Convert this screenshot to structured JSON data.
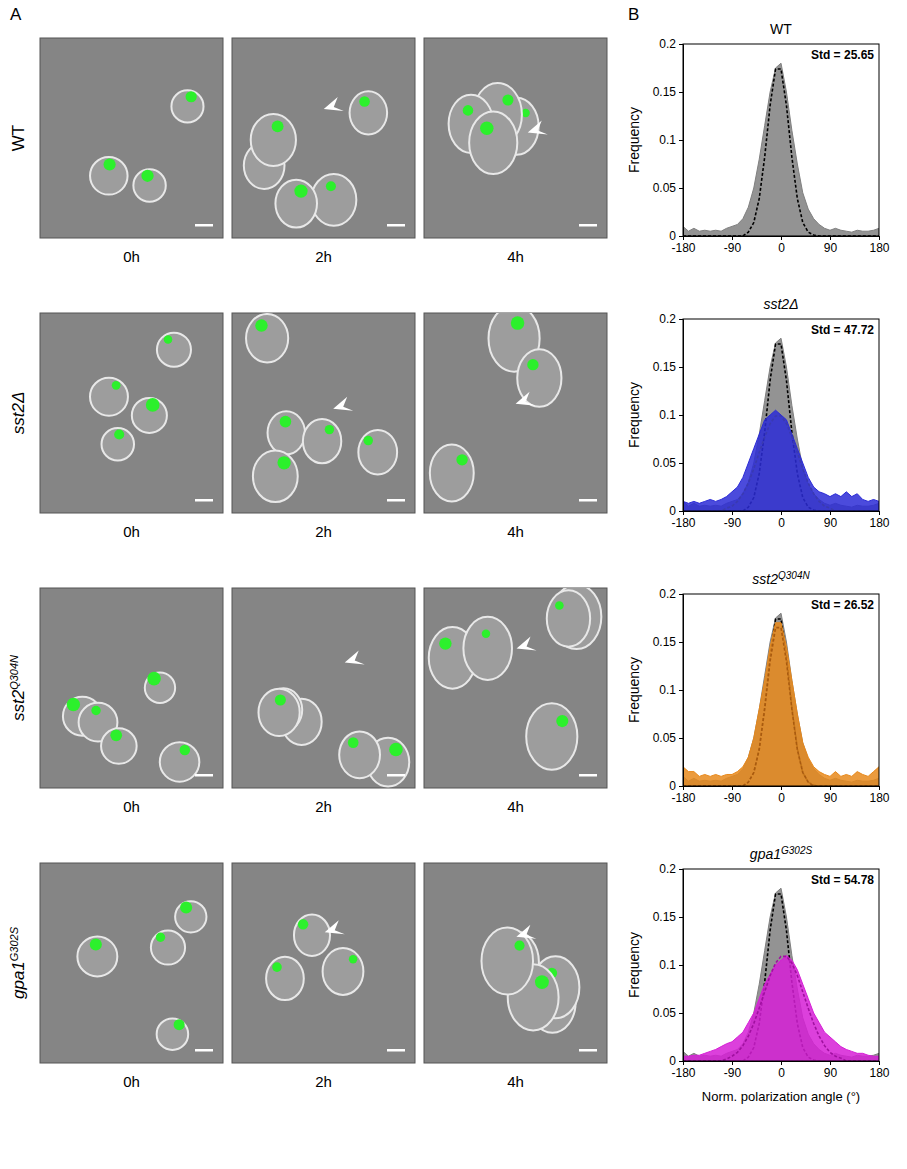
{
  "figure": {
    "panel_a": {
      "label": "A",
      "rows": [
        {
          "label": "WT"
        },
        {
          "label": "sst2Δ"
        },
        {
          "label": "sst2",
          "label_sup": "Q304N"
        },
        {
          "label": "gpa1",
          "label_sup": "G302S"
        }
      ],
      "times": [
        "0h",
        "2h",
        "4h"
      ]
    },
    "panel_b": {
      "label": "B"
    }
  },
  "chart_data": [
    {
      "type": "area",
      "title": "WT",
      "annotation": "Std = 25.65",
      "ylabel": "Frequency",
      "x": [
        -180,
        -170,
        -160,
        -150,
        -140,
        -130,
        -120,
        -110,
        -100,
        -90,
        -80,
        -70,
        -60,
        -50,
        -40,
        -30,
        -20,
        -10,
        0,
        10,
        20,
        30,
        40,
        50,
        60,
        70,
        80,
        90,
        100,
        110,
        120,
        130,
        140,
        150,
        160,
        170,
        180
      ],
      "xlim": [
        -180,
        180
      ],
      "ylim": [
        0,
        0.2
      ],
      "xticks": [
        -180,
        -90,
        0,
        90,
        180
      ],
      "yticks": [
        0,
        0.05,
        0.1,
        0.15,
        0.2
      ],
      "series": [
        {
          "type": "area",
          "color": "#808080",
          "values": [
            0.01,
            0.005,
            0.008,
            0.005,
            0.006,
            0.005,
            0.006,
            0.005,
            0.008,
            0.01,
            0.012,
            0.018,
            0.03,
            0.05,
            0.08,
            0.115,
            0.15,
            0.175,
            0.18,
            0.15,
            0.11,
            0.075,
            0.045,
            0.028,
            0.018,
            0.012,
            0.008,
            0.006,
            0.008,
            0.006,
            0.005,
            0.004,
            0.006,
            0.005,
            0.005,
            0.006,
            0.008
          ]
        },
        {
          "type": "line",
          "line_style": "dashed",
          "color": "#000000",
          "values": [
            0,
            0,
            0,
            0,
            0,
            0,
            0,
            0,
            0,
            0,
            0,
            0,
            0.004,
            0.014,
            0.039,
            0.082,
            0.136,
            0.174,
            0.174,
            0.136,
            0.082,
            0.039,
            0.014,
            0.004,
            0.001,
            0,
            0,
            0,
            0,
            0,
            0,
            0,
            0,
            0,
            0,
            0,
            0
          ]
        }
      ]
    },
    {
      "type": "area",
      "title": "sst2Δ",
      "annotation": "Std = 47.72",
      "ylabel": "Frequency",
      "x": [
        -180,
        -170,
        -160,
        -150,
        -140,
        -130,
        -120,
        -110,
        -100,
        -90,
        -80,
        -70,
        -60,
        -50,
        -40,
        -30,
        -20,
        -10,
        0,
        10,
        20,
        30,
        40,
        50,
        60,
        70,
        80,
        90,
        100,
        110,
        120,
        130,
        140,
        150,
        160,
        170,
        180
      ],
      "xlim": [
        -180,
        180
      ],
      "ylim": [
        0,
        0.2
      ],
      "xticks": [
        -180,
        -90,
        0,
        90,
        180
      ],
      "yticks": [
        0,
        0.05,
        0.1,
        0.15,
        0.2
      ],
      "series": [
        {
          "type": "area",
          "color": "#808080",
          "values": [
            0.01,
            0.005,
            0.008,
            0.005,
            0.006,
            0.005,
            0.006,
            0.005,
            0.008,
            0.01,
            0.012,
            0.018,
            0.03,
            0.05,
            0.08,
            0.115,
            0.15,
            0.175,
            0.18,
            0.15,
            0.11,
            0.075,
            0.045,
            0.028,
            0.018,
            0.012,
            0.008,
            0.006,
            0.008,
            0.006,
            0.005,
            0.004,
            0.006,
            0.005,
            0.005,
            0.006,
            0.008
          ]
        },
        {
          "type": "line",
          "line_style": "dashed",
          "color": "#000000",
          "values": [
            0,
            0,
            0,
            0,
            0,
            0,
            0,
            0,
            0,
            0,
            0,
            0,
            0.004,
            0.014,
            0.039,
            0.082,
            0.136,
            0.174,
            0.174,
            0.136,
            0.082,
            0.039,
            0.014,
            0.004,
            0.001,
            0,
            0,
            0,
            0,
            0,
            0,
            0,
            0,
            0,
            0,
            0,
            0
          ]
        },
        {
          "type": "area",
          "color": "#2b2bd6",
          "values": [
            0.01,
            0.008,
            0.01,
            0.008,
            0.01,
            0.012,
            0.01,
            0.012,
            0.015,
            0.02,
            0.025,
            0.035,
            0.05,
            0.065,
            0.08,
            0.095,
            0.1,
            0.105,
            0.1,
            0.095,
            0.08,
            0.065,
            0.05,
            0.035,
            0.025,
            0.02,
            0.018,
            0.015,
            0.018,
            0.015,
            0.02,
            0.015,
            0.018,
            0.012,
            0.01,
            0.012,
            0.01
          ]
        },
        {
          "type": "line",
          "line_style": "dashed",
          "color": "#3a3ab0",
          "values": [
            0,
            0,
            0,
            0,
            0,
            0,
            0,
            0,
            0.003,
            0.005,
            0.01,
            0.018,
            0.029,
            0.044,
            0.061,
            0.077,
            0.091,
            0.099,
            0.099,
            0.091,
            0.077,
            0.061,
            0.044,
            0.029,
            0.018,
            0.01,
            0.005,
            0.003,
            0,
            0,
            0,
            0,
            0,
            0,
            0,
            0,
            0
          ]
        }
      ]
    },
    {
      "type": "area",
      "title": "sst2",
      "title_sup": "Q304N",
      "annotation": "Std = 26.52",
      "ylabel": "Frequency",
      "x": [
        -180,
        -170,
        -160,
        -150,
        -140,
        -130,
        -120,
        -110,
        -100,
        -90,
        -80,
        -70,
        -60,
        -50,
        -40,
        -30,
        -20,
        -10,
        0,
        10,
        20,
        30,
        40,
        50,
        60,
        70,
        80,
        90,
        100,
        110,
        120,
        130,
        140,
        150,
        160,
        170,
        180
      ],
      "xlim": [
        -180,
        180
      ],
      "ylim": [
        0,
        0.2
      ],
      "xticks": [
        -180,
        -90,
        0,
        90,
        180
      ],
      "yticks": [
        0,
        0.05,
        0.1,
        0.15,
        0.2
      ],
      "series": [
        {
          "type": "area",
          "color": "#808080",
          "values": [
            0.01,
            0.005,
            0.008,
            0.005,
            0.006,
            0.005,
            0.006,
            0.005,
            0.008,
            0.01,
            0.012,
            0.018,
            0.03,
            0.05,
            0.08,
            0.115,
            0.15,
            0.175,
            0.18,
            0.15,
            0.11,
            0.075,
            0.045,
            0.028,
            0.018,
            0.012,
            0.008,
            0.006,
            0.008,
            0.006,
            0.005,
            0.004,
            0.006,
            0.005,
            0.005,
            0.006,
            0.008
          ]
        },
        {
          "type": "line",
          "line_style": "dashed",
          "color": "#000000",
          "values": [
            0,
            0,
            0,
            0,
            0,
            0,
            0,
            0,
            0,
            0,
            0,
            0,
            0.004,
            0.014,
            0.039,
            0.082,
            0.136,
            0.174,
            0.174,
            0.136,
            0.082,
            0.039,
            0.014,
            0.004,
            0.001,
            0,
            0,
            0,
            0,
            0,
            0,
            0,
            0,
            0,
            0,
            0,
            0
          ]
        },
        {
          "type": "area",
          "color": "#e8891c",
          "values": [
            0.02,
            0.015,
            0.015,
            0.01,
            0.012,
            0.01,
            0.012,
            0.01,
            0.012,
            0.012,
            0.015,
            0.02,
            0.03,
            0.05,
            0.08,
            0.11,
            0.145,
            0.17,
            0.17,
            0.145,
            0.11,
            0.075,
            0.045,
            0.03,
            0.02,
            0.015,
            0.012,
            0.01,
            0.015,
            0.01,
            0.012,
            0.01,
            0.015,
            0.012,
            0.01,
            0.015,
            0.02
          ]
        },
        {
          "type": "line",
          "line_style": "dashed",
          "color": "#a85a10",
          "values": [
            0,
            0,
            0,
            0,
            0,
            0,
            0,
            0,
            0,
            0,
            0,
            0,
            0.004,
            0.014,
            0.038,
            0.08,
            0.13,
            0.165,
            0.165,
            0.13,
            0.08,
            0.038,
            0.014,
            0.004,
            0,
            0,
            0,
            0,
            0,
            0,
            0,
            0,
            0,
            0,
            0,
            0,
            0
          ]
        }
      ]
    },
    {
      "type": "area",
      "title": "gpa1",
      "title_sup": "G302S",
      "annotation": "Std = 54.78",
      "ylabel": "Frequency",
      "xlabel": "Norm. polarization angle (°)",
      "x": [
        -180,
        -170,
        -160,
        -150,
        -140,
        -130,
        -120,
        -110,
        -100,
        -90,
        -80,
        -70,
        -60,
        -50,
        -40,
        -30,
        -20,
        -10,
        0,
        10,
        20,
        30,
        40,
        50,
        60,
        70,
        80,
        90,
        100,
        110,
        120,
        130,
        140,
        150,
        160,
        170,
        180
      ],
      "xlim": [
        -180,
        180
      ],
      "ylim": [
        0,
        0.2
      ],
      "xticks": [
        -180,
        -90,
        0,
        90,
        180
      ],
      "yticks": [
        0,
        0.05,
        0.1,
        0.15,
        0.2
      ],
      "series": [
        {
          "type": "area",
          "color": "#808080",
          "values": [
            0.01,
            0.005,
            0.008,
            0.005,
            0.006,
            0.005,
            0.006,
            0.005,
            0.008,
            0.01,
            0.012,
            0.018,
            0.03,
            0.05,
            0.08,
            0.115,
            0.15,
            0.175,
            0.18,
            0.15,
            0.11,
            0.075,
            0.045,
            0.028,
            0.018,
            0.012,
            0.008,
            0.006,
            0.008,
            0.006,
            0.005,
            0.004,
            0.006,
            0.005,
            0.005,
            0.006,
            0.008
          ]
        },
        {
          "type": "line",
          "line_style": "dashed",
          "color": "#000000",
          "values": [
            0,
            0,
            0,
            0,
            0,
            0,
            0,
            0,
            0,
            0,
            0,
            0,
            0.004,
            0.014,
            0.039,
            0.082,
            0.136,
            0.174,
            0.174,
            0.136,
            0.082,
            0.039,
            0.014,
            0.004,
            0.001,
            0,
            0,
            0,
            0,
            0,
            0,
            0,
            0,
            0,
            0,
            0,
            0
          ]
        },
        {
          "type": "area",
          "color": "#d61fd6",
          "values": [
            0.005,
            0.005,
            0.006,
            0.006,
            0.008,
            0.01,
            0.012,
            0.015,
            0.018,
            0.02,
            0.025,
            0.03,
            0.04,
            0.05,
            0.065,
            0.08,
            0.09,
            0.1,
            0.105,
            0.11,
            0.105,
            0.095,
            0.08,
            0.065,
            0.05,
            0.04,
            0.03,
            0.025,
            0.02,
            0.015,
            0.012,
            0.01,
            0.008,
            0.008,
            0.006,
            0.005,
            0.005
          ]
        },
        {
          "type": "line",
          "line_style": "dashed",
          "color": "#a010a0",
          "values": [
            0,
            0,
            0,
            0,
            0,
            0,
            0,
            0,
            0.002,
            0.005,
            0.009,
            0.016,
            0.026,
            0.039,
            0.055,
            0.072,
            0.089,
            0.102,
            0.109,
            0.109,
            0.102,
            0.089,
            0.072,
            0.055,
            0.039,
            0.026,
            0.016,
            0.009,
            0.005,
            0.003,
            0,
            0,
            0,
            0,
            0,
            0,
            0
          ]
        }
      ]
    }
  ]
}
